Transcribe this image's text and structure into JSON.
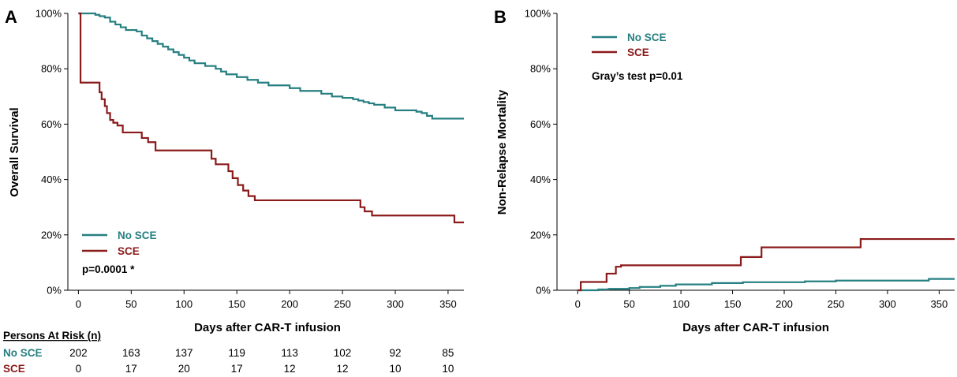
{
  "colors": {
    "no_sce": "#267f80",
    "sce": "#8b1a1a",
    "axis": "#000000"
  },
  "chart_data": [
    {
      "panel": "A",
      "type": "line",
      "step": true,
      "ylabel": "Overall Survival",
      "xlabel": "Days after CAR-T infusion",
      "xlim": [
        -10,
        365
      ],
      "ylim": [
        0,
        100
      ],
      "xticks": [
        0,
        50,
        100,
        150,
        200,
        250,
        300,
        350
      ],
      "yticks": [
        0,
        20,
        40,
        60,
        80,
        100
      ],
      "ytick_labels": [
        "0%",
        "20%",
        "40%",
        "60%",
        "80%",
        "100%"
      ],
      "legend": {
        "position": "bottom-left",
        "entries": [
          "No SCE",
          "SCE"
        ]
      },
      "annotation": "p=0.0001 *",
      "series": [
        {
          "name": "No SCE",
          "color_key": "no_sce",
          "x": [
            0,
            12,
            16,
            20,
            25,
            30,
            35,
            40,
            45,
            55,
            60,
            65,
            70,
            75,
            80,
            85,
            90,
            95,
            100,
            105,
            110,
            120,
            130,
            135,
            140,
            145,
            150,
            155,
            160,
            170,
            180,
            190,
            200,
            210,
            220,
            230,
            240,
            250,
            260,
            265,
            270,
            275,
            280,
            290,
            300,
            310,
            320,
            325,
            330,
            335,
            365
          ],
          "y": [
            100,
            100,
            99.5,
            99,
            98.5,
            97,
            96,
            95,
            94,
            93.5,
            92,
            91,
            90,
            89,
            88,
            87,
            86,
            85,
            84,
            83,
            82,
            81,
            80,
            79,
            78,
            78,
            77,
            77,
            76,
            75,
            74,
            74,
            73,
            72,
            72,
            71,
            70,
            69.5,
            69,
            68.5,
            68,
            67.5,
            67,
            66,
            65,
            65,
            64.5,
            64,
            63,
            62,
            62
          ]
        },
        {
          "name": "SCE",
          "color_key": "sce",
          "x": [
            0,
            2,
            17,
            20,
            22,
            25,
            27,
            30,
            33,
            37,
            42,
            57,
            60,
            66,
            73,
            123,
            126,
            130,
            142,
            146,
            151,
            156,
            161,
            167,
            175,
            267,
            271,
            278,
            356,
            365
          ],
          "y": [
            100,
            75,
            75,
            71.5,
            69,
            66.5,
            64,
            61.5,
            60.5,
            59.5,
            57,
            57,
            55,
            53.5,
            50.5,
            50.5,
            47.5,
            45.5,
            43,
            40.5,
            38,
            36,
            34,
            32.5,
            32.5,
            30,
            28.5,
            27,
            24.5,
            24.5
          ]
        }
      ],
      "risk_table": {
        "title": "Persons At Risk (n)",
        "time_points": [
          0,
          50,
          100,
          150,
          200,
          250,
          300,
          350
        ],
        "rows": [
          {
            "label": "No SCE",
            "color_key": "no_sce",
            "values": [
              "202",
              "163",
              "137",
              "119",
              "113",
              "102",
              "92",
              "85"
            ]
          },
          {
            "label": "SCE",
            "color_key": "sce",
            "values": [
              "0",
              "17",
              "20",
              "17",
              "12",
              "12",
              "10",
              "10"
            ]
          }
        ]
      }
    },
    {
      "panel": "B",
      "type": "line",
      "step": true,
      "ylabel": "Non-Relapse Mortality",
      "xlabel": "Days after CAR-T infusion",
      "xlim": [
        -20,
        365
      ],
      "ylim": [
        0,
        100
      ],
      "xticks": [
        0,
        50,
        100,
        150,
        200,
        250,
        300,
        350
      ],
      "yticks": [
        0,
        20,
        40,
        60,
        80,
        100
      ],
      "ytick_labels": [
        "0%",
        "20%",
        "40%",
        "60%",
        "80%",
        "100%"
      ],
      "legend": {
        "position": "top-left",
        "entries": [
          "No SCE",
          "SCE"
        ]
      },
      "annotation": "Gray’s test p=0.01",
      "series": [
        {
          "name": "No SCE",
          "color_key": "no_sce",
          "x": [
            0,
            10,
            20,
            30,
            50,
            60,
            80,
            95,
            130,
            160,
            220,
            250,
            340,
            365
          ],
          "y": [
            0,
            0,
            0.3,
            0.5,
            0.8,
            1.2,
            1.6,
            2.1,
            2.6,
            2.9,
            3.2,
            3.5,
            4.1,
            4.1
          ]
        },
        {
          "name": "SCE",
          "color_key": "sce",
          "x": [
            0,
            3,
            28,
            37,
            42,
            158,
            178,
            274,
            365
          ],
          "y": [
            0,
            3,
            6,
            8.5,
            9,
            12,
            15.5,
            18.5,
            18.5
          ]
        }
      ]
    }
  ]
}
